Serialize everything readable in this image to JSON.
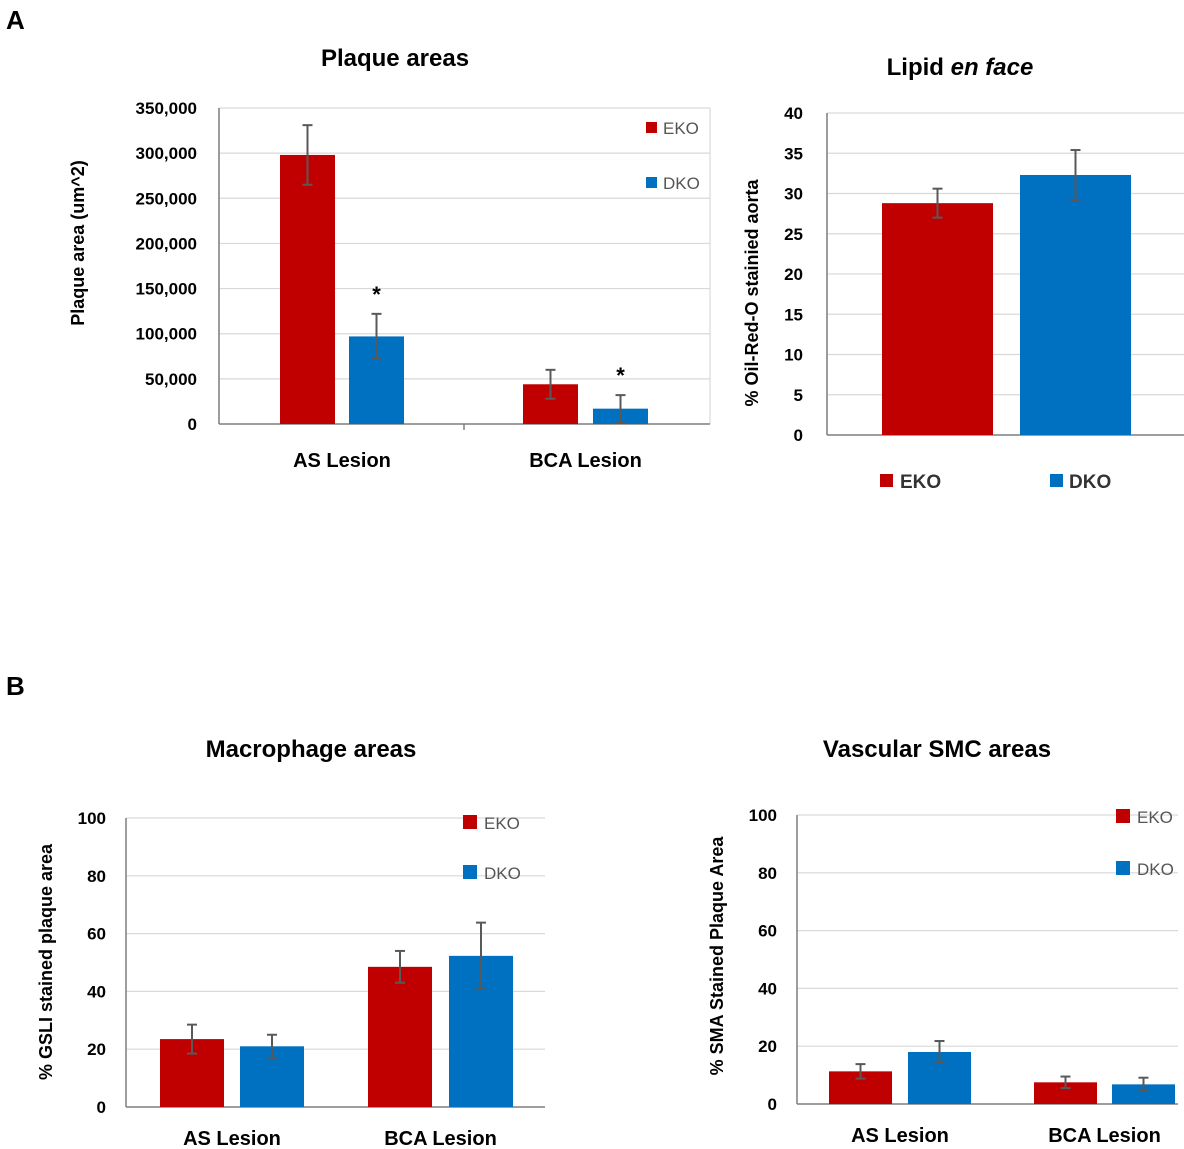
{
  "panels": {
    "a": "A",
    "b": "B"
  },
  "colors": {
    "eko": "#C00000",
    "dko": "#0070C0"
  },
  "chart_data": [
    {
      "type": "bar",
      "title": "Plaque areas",
      "ylabel": "Plaque area (um^2)",
      "xlabel": "",
      "categories": [
        "AS Lesion",
        "BCA Lesion"
      ],
      "ylim": [
        0,
        350000
      ],
      "yticks": [
        0,
        50000,
        100000,
        150000,
        200000,
        250000,
        300000,
        350000
      ],
      "ytick_labels": [
        "0",
        "50,000",
        "100,000",
        "150,000",
        "200,000",
        "250,000",
        "300,000",
        "350,000"
      ],
      "grid": true,
      "legend_position": "top-right",
      "series": [
        {
          "name": "EKO",
          "values": [
            298000,
            44000
          ],
          "errors": [
            33000,
            16000
          ]
        },
        {
          "name": "DKO",
          "values": [
            97000,
            17000
          ],
          "errors": [
            25000,
            15000
          ]
        }
      ],
      "annotations": [
        {
          "text": "*",
          "series": "DKO",
          "category": "AS Lesion"
        },
        {
          "text": "*",
          "series": "DKO",
          "category": "BCA Lesion"
        }
      ]
    },
    {
      "type": "bar",
      "title_parts": [
        "Lipid ",
        "en face"
      ],
      "ylabel": "% Oil-Red-O stainied aorta",
      "xlabel": "",
      "categories": [
        ""
      ],
      "ylim": [
        0,
        40
      ],
      "yticks": [
        0,
        5,
        10,
        15,
        20,
        25,
        30,
        35,
        40
      ],
      "ytick_labels": [
        "0",
        "5",
        "10",
        "15",
        "20",
        "25",
        "30",
        "35",
        "40"
      ],
      "grid": true,
      "legend_position": "bottom",
      "series": [
        {
          "name": "EKO",
          "values": [
            28.8
          ],
          "errors": [
            1.8
          ]
        },
        {
          "name": "DKO",
          "values": [
            32.3
          ],
          "errors": [
            3.1
          ]
        }
      ]
    },
    {
      "type": "bar",
      "title": "Macrophage areas",
      "ylabel": "% GSLI stained plaque area",
      "xlabel": "",
      "categories": [
        "AS Lesion",
        "BCA Lesion"
      ],
      "ylim": [
        0,
        100
      ],
      "yticks": [
        0,
        20,
        40,
        60,
        80,
        100
      ],
      "ytick_labels": [
        "0",
        "20",
        "40",
        "60",
        "80",
        "100"
      ],
      "grid": true,
      "legend_position": "top-right",
      "series": [
        {
          "name": "EKO",
          "values": [
            23.5,
            48.5
          ],
          "errors": [
            5,
            5.5
          ]
        },
        {
          "name": "DKO",
          "values": [
            21,
            52.3
          ],
          "errors": [
            4,
            11.5
          ]
        }
      ]
    },
    {
      "type": "bar",
      "title": "Vascular SMC areas",
      "ylabel": "% SMA Stained Plaque Area",
      "xlabel": "",
      "categories": [
        "AS Lesion",
        "BCA Lesion"
      ],
      "ylim": [
        0,
        100
      ],
      "yticks": [
        0,
        20,
        40,
        60,
        80,
        100
      ],
      "ytick_labels": [
        "0",
        "20",
        "40",
        "60",
        "80",
        "100"
      ],
      "grid": true,
      "legend_position": "top-right",
      "series": [
        {
          "name": "EKO",
          "values": [
            11.3,
            7.5
          ],
          "errors": [
            2.5,
            2
          ]
        },
        {
          "name": "DKO",
          "values": [
            18,
            6.8
          ],
          "errors": [
            3.8,
            2.3
          ]
        }
      ]
    }
  ]
}
